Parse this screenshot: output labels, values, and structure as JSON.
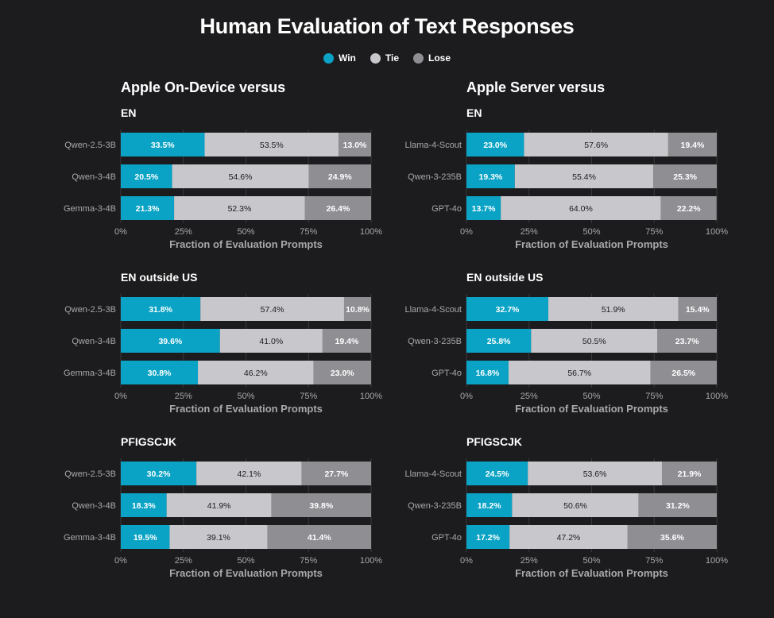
{
  "title": "Human Evaluation of Text Responses",
  "legend": [
    {
      "label": "Win",
      "color": "#0aa3c5"
    },
    {
      "label": "Tie",
      "color": "#c8c8cc"
    },
    {
      "label": "Lose",
      "color": "#8e8e93"
    }
  ],
  "columns": [
    {
      "title": "Apple On-Device versus"
    },
    {
      "title": "Apple Server versus"
    }
  ],
  "chart_data": [
    {
      "type": "bar",
      "orientation": "horizontal",
      "stacked": true,
      "group": "Apple On-Device versus",
      "title": "EN",
      "categories": [
        "Qwen-2.5-3B",
        "Qwen-3-4B",
        "Gemma-3-4B"
      ],
      "series": [
        {
          "name": "Win",
          "values": [
            33.5,
            20.5,
            21.3
          ]
        },
        {
          "name": "Tie",
          "values": [
            53.5,
            54.6,
            52.3
          ]
        },
        {
          "name": "Lose",
          "values": [
            13.0,
            24.9,
            26.4
          ]
        }
      ],
      "xlabel": "Fraction of Evaluation Prompts",
      "xticks": [
        "0%",
        "25%",
        "50%",
        "75%",
        "100%"
      ],
      "xlim": [
        0,
        100
      ]
    },
    {
      "type": "bar",
      "orientation": "horizontal",
      "stacked": true,
      "group": "Apple Server versus",
      "title": "EN",
      "categories": [
        "Llama-4-Scout",
        "Qwen-3-235B",
        "GPT-4o"
      ],
      "series": [
        {
          "name": "Win",
          "values": [
            23.0,
            19.3,
            13.7
          ]
        },
        {
          "name": "Tie",
          "values": [
            57.6,
            55.4,
            64.0
          ]
        },
        {
          "name": "Lose",
          "values": [
            19.4,
            25.3,
            22.2
          ]
        }
      ],
      "xlabel": "Fraction of Evaluation Prompts",
      "xticks": [
        "0%",
        "25%",
        "50%",
        "75%",
        "100%"
      ],
      "xlim": [
        0,
        100
      ]
    },
    {
      "type": "bar",
      "orientation": "horizontal",
      "stacked": true,
      "group": "Apple On-Device versus",
      "title": "EN outside US",
      "categories": [
        "Qwen-2.5-3B",
        "Qwen-3-4B",
        "Gemma-3-4B"
      ],
      "series": [
        {
          "name": "Win",
          "values": [
            31.8,
            39.6,
            30.8
          ]
        },
        {
          "name": "Tie",
          "values": [
            57.4,
            41.0,
            46.2
          ]
        },
        {
          "name": "Lose",
          "values": [
            10.8,
            19.4,
            23.0
          ]
        }
      ],
      "xlabel": "Fraction of Evaluation Prompts",
      "xticks": [
        "0%",
        "25%",
        "50%",
        "75%",
        "100%"
      ],
      "xlim": [
        0,
        100
      ]
    },
    {
      "type": "bar",
      "orientation": "horizontal",
      "stacked": true,
      "group": "Apple Server versus",
      "title": "EN outside US",
      "categories": [
        "Llama-4-Scout",
        "Qwen-3-235B",
        "GPT-4o"
      ],
      "series": [
        {
          "name": "Win",
          "values": [
            32.7,
            25.8,
            16.8
          ]
        },
        {
          "name": "Tie",
          "values": [
            51.9,
            50.5,
            56.7
          ]
        },
        {
          "name": "Lose",
          "values": [
            15.4,
            23.7,
            26.5
          ]
        }
      ],
      "xlabel": "Fraction of Evaluation Prompts",
      "xticks": [
        "0%",
        "25%",
        "50%",
        "75%",
        "100%"
      ],
      "xlim": [
        0,
        100
      ]
    },
    {
      "type": "bar",
      "orientation": "horizontal",
      "stacked": true,
      "group": "Apple On-Device versus",
      "title": "PFIGSCJK",
      "categories": [
        "Qwen-2.5-3B",
        "Qwen-3-4B",
        "Gemma-3-4B"
      ],
      "series": [
        {
          "name": "Win",
          "values": [
            30.2,
            18.3,
            19.5
          ]
        },
        {
          "name": "Tie",
          "values": [
            42.1,
            41.9,
            39.1
          ]
        },
        {
          "name": "Lose",
          "values": [
            27.7,
            39.8,
            41.4
          ]
        }
      ],
      "xlabel": "Fraction of Evaluation Prompts",
      "xticks": [
        "0%",
        "25%",
        "50%",
        "75%",
        "100%"
      ],
      "xlim": [
        0,
        100
      ]
    },
    {
      "type": "bar",
      "orientation": "horizontal",
      "stacked": true,
      "group": "Apple Server versus",
      "title": "PFIGSCJK",
      "categories": [
        "Llama-4-Scout",
        "Qwen-3-235B",
        "GPT-4o"
      ],
      "series": [
        {
          "name": "Win",
          "values": [
            24.5,
            18.2,
            17.2
          ]
        },
        {
          "name": "Tie",
          "values": [
            53.6,
            50.6,
            47.2
          ]
        },
        {
          "name": "Lose",
          "values": [
            21.9,
            31.2,
            35.6
          ]
        }
      ],
      "xlabel": "Fraction of Evaluation Prompts",
      "xticks": [
        "0%",
        "25%",
        "50%",
        "75%",
        "100%"
      ],
      "xlim": [
        0,
        100
      ]
    }
  ]
}
